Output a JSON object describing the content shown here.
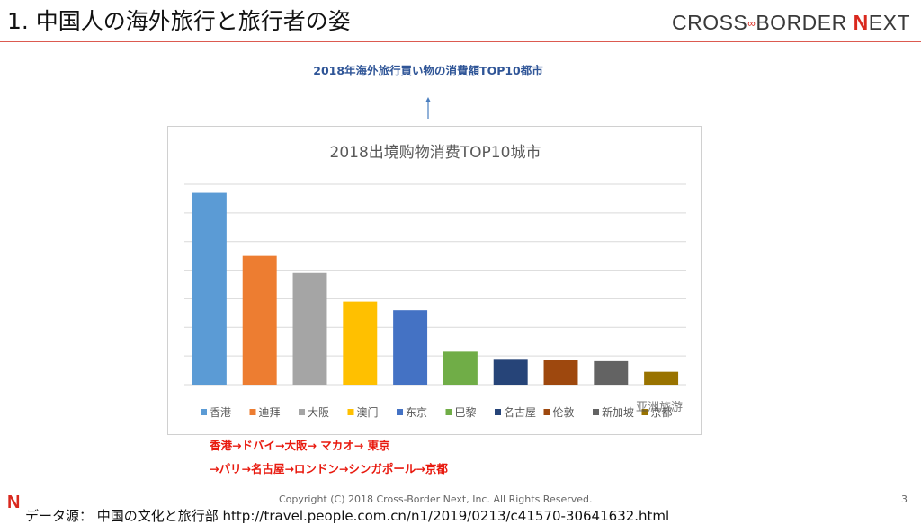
{
  "header": {
    "title": "1. 中国人の海外旅行と旅行者の姿",
    "logo_left": "CROSS",
    "logo_link": "∞",
    "logo_mid": "BORDER ",
    "logo_n": "N",
    "logo_end": "EXT"
  },
  "caption": "2018年海外旅行買い物の消費額TOP10都市",
  "chart_data": {
    "type": "bar",
    "title": "2018出境购物消费TOP10城市",
    "categories": [
      "香港",
      "迪拜",
      "大阪",
      "澳门",
      "东京",
      "巴黎",
      "名古屋",
      "伦敦",
      "新加坡",
      "京都"
    ],
    "values": [
      6.7,
      4.5,
      3.9,
      2.9,
      2.6,
      1.15,
      0.9,
      0.85,
      0.82,
      0.45
    ],
    "colors": [
      "#5b9bd5",
      "#ed7d31",
      "#a5a5a5",
      "#ffc000",
      "#4472c4",
      "#70ad47",
      "#264478",
      "#9e480e",
      "#636363",
      "#997300"
    ],
    "ylim": [
      0,
      7
    ],
    "grid": true,
    "legend": "bottom",
    "watermark": "亚洲旅游"
  },
  "route": {
    "line1": "香港→ドバイ→大阪→ マカオ→ 東京",
    "line2": "→パリ→名古屋→ロンドン→シンガポール→京都"
  },
  "footer": {
    "copyright": "Copyright (C) 2018 Cross-Border Next, Inc. All Rights Reserved.",
    "page": "3",
    "n_mark": "N",
    "source": "データ源： 中国の文化と旅行部 http://travel.people.com.cn/n1/2019/0213/c41570-30641632.html"
  }
}
